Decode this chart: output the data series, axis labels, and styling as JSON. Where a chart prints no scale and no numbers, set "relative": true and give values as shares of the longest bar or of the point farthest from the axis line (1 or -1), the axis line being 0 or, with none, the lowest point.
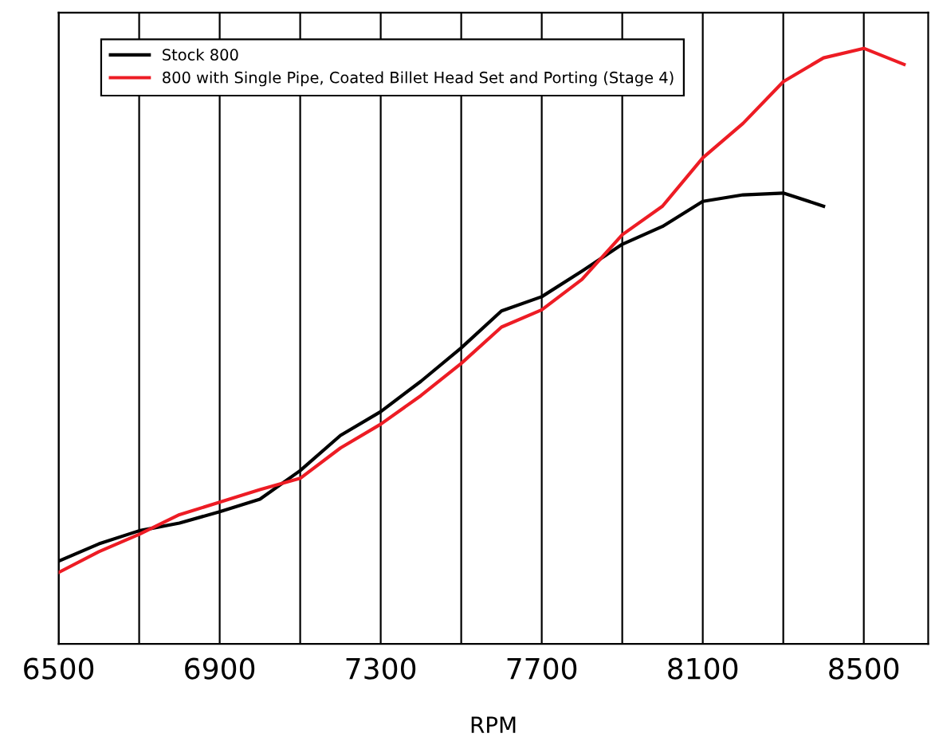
{
  "chart_data": {
    "type": "line",
    "xlabel": "RPM",
    "relative": true,
    "x": [
      6500,
      6600,
      6700,
      6800,
      6900,
      7000,
      7100,
      7200,
      7300,
      7400,
      7500,
      7600,
      7700,
      7800,
      7900,
      8000,
      8100,
      8200,
      8300,
      8400,
      8500,
      8600
    ],
    "series": [
      {
        "name": "Stock 800",
        "color": "#000000",
        "values": [
          0.139,
          0.168,
          0.19,
          0.203,
          0.222,
          0.243,
          0.291,
          0.35,
          0.39,
          0.441,
          0.497,
          0.559,
          0.583,
          0.626,
          0.671,
          0.701,
          0.743,
          0.754,
          0.757,
          0.735,
          null,
          null
        ]
      },
      {
        "name": "800 with Single Pipe, Coated Billet Head Set and Porting (Stage 4)",
        "color": "#ed1c24",
        "values": [
          0.12,
          0.155,
          0.184,
          0.217,
          0.238,
          0.259,
          0.278,
          0.329,
          0.369,
          0.417,
          0.471,
          0.532,
          0.561,
          0.612,
          0.687,
          0.735,
          0.816,
          0.874,
          0.944,
          0.984,
          1,
          0.973
        ]
      }
    ],
    "xlim": [
      6500,
      8660
    ],
    "xticks": [
      6500,
      {
        "value": 6700,
        "label": null
      },
      6900,
      {
        "value": 7100,
        "label": null
      },
      7300,
      {
        "value": 7500,
        "label": null
      },
      7700,
      {
        "value": 7900,
        "label": null
      },
      8100,
      {
        "value": 8300,
        "label": null
      },
      8500
    ],
    "grid": "x",
    "legend": "top left",
    "marker": "none",
    "line_style": "solid"
  }
}
